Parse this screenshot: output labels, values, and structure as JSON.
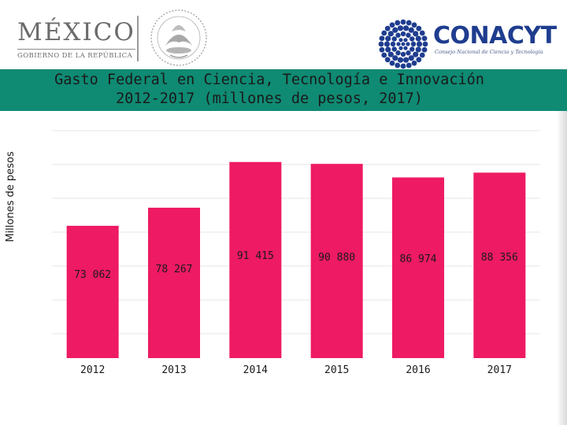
{
  "header": {
    "mexico_logo": {
      "word": "MÉXICO",
      "subtitle": "GOBIERNO DE LA REPÚBLICA"
    },
    "seal": {
      "name": "escudo-nacional",
      "inscription": "ESTADOS UNIDOS MEXICANOS"
    },
    "conacyt_logo": {
      "word": "CONACYT",
      "subtitle": "Consejo Nacional de Ciencia y Tecnología"
    }
  },
  "colors": {
    "band": "#0f8a73",
    "bar": "#ee1a63",
    "conacyt_blue": "#1f3d8f"
  },
  "chart_data": {
    "type": "bar",
    "title_line1": "Gasto Federal en Ciencia, Tecnología e Innovación",
    "title_line2": "2012-2017 (millones de pesos, 2017)",
    "ylabel": "Millones de pesos",
    "xlabel": "",
    "categories": [
      "2012",
      "2013",
      "2014",
      "2015",
      "2016",
      "2017"
    ],
    "values": [
      73062,
      78267,
      91415,
      90880,
      86974,
      88356
    ],
    "value_labels": [
      "73 062",
      "78 267",
      "91 415",
      "90 880",
      "86 974",
      "88 356"
    ],
    "ylim": [
      35000,
      95000
    ],
    "grid": true,
    "legend": "none"
  }
}
